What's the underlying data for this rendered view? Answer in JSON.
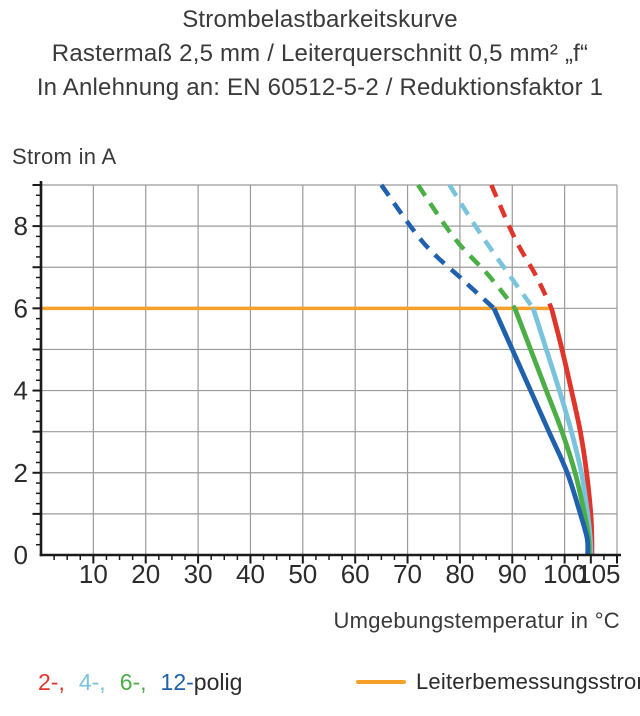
{
  "title": {
    "line1": "Strombelastbarkeitskurve",
    "line2": "Rastermaß 2,5 mm / Leiterquerschnitt 0,5 mm² „f“",
    "line3": "In Anlehnung an: EN 60512-5-2 / Reduktionsfaktor 1"
  },
  "chart_data": {
    "type": "line",
    "title": "Strombelastbarkeitskurve",
    "xlabel": "Umgebungstemperatur in °C",
    "ylabel": "Strom in A",
    "xlim": [
      0,
      110
    ],
    "ylim": [
      0,
      9
    ],
    "grid": true,
    "grid_color": "#9b9b9b",
    "axis_color": "#1a1a1a",
    "x_minor_step": 2.5,
    "y_minor_step": 0.25,
    "x_ticks": [
      {
        "v": 10,
        "label": "10",
        "dx": 0
      },
      {
        "v": 20,
        "label": "20",
        "dx": 0
      },
      {
        "v": 30,
        "label": "30",
        "dx": 0
      },
      {
        "v": 40,
        "label": "40",
        "dx": 0
      },
      {
        "v": 50,
        "label": "50",
        "dx": 0
      },
      {
        "v": 60,
        "label": "60",
        "dx": 0
      },
      {
        "v": 70,
        "label": "70",
        "dx": 0
      },
      {
        "v": 80,
        "label": "80",
        "dx": 0
      },
      {
        "v": 90,
        "label": "90",
        "dx": 0
      },
      {
        "v": 100,
        "label": "100",
        "dx": 0
      },
      {
        "v": 105,
        "label": "105",
        "dx": 8
      }
    ],
    "y_ticks": [
      {
        "v": 0,
        "label": "0"
      },
      {
        "v": 2,
        "label": "2"
      },
      {
        "v": 4,
        "label": "4"
      },
      {
        "v": 6,
        "label": "6"
      },
      {
        "v": 8,
        "label": "8"
      }
    ],
    "series": [
      {
        "name": "2-polig",
        "color": "#e0352b",
        "dashed_points": [
          [
            86,
            9
          ],
          [
            90.5,
            7.7
          ],
          [
            94.5,
            6.8
          ],
          [
            97.5,
            6
          ]
        ],
        "solid_points": [
          [
            97.5,
            6
          ],
          [
            99.5,
            5
          ],
          [
            101.3,
            4
          ],
          [
            103,
            3
          ],
          [
            104.2,
            2
          ],
          [
            105,
            1
          ],
          [
            105.2,
            0.4
          ],
          [
            105.2,
            0
          ]
        ]
      },
      {
        "name": "4-polig",
        "color": "#79c3dc",
        "dashed_points": [
          [
            78,
            9
          ],
          [
            84,
            7.8
          ],
          [
            89.5,
            6.8
          ],
          [
            94,
            6
          ]
        ],
        "solid_points": [
          [
            94,
            6
          ],
          [
            96.5,
            5
          ],
          [
            99,
            4
          ],
          [
            101.3,
            3
          ],
          [
            103.2,
            2
          ],
          [
            104.4,
            1
          ],
          [
            104.9,
            0.4
          ],
          [
            105,
            0
          ]
        ]
      },
      {
        "name": "6-polig",
        "color": "#4bae46",
        "dashed_points": [
          [
            72,
            9
          ],
          [
            79,
            7.7
          ],
          [
            85.5,
            6.8
          ],
          [
            90.5,
            6
          ]
        ],
        "solid_points": [
          [
            90.5,
            6
          ],
          [
            93.5,
            5
          ],
          [
            96.5,
            4
          ],
          [
            99.5,
            3
          ],
          [
            102,
            2
          ],
          [
            103.8,
            1
          ],
          [
            104.6,
            0.4
          ],
          [
            104.7,
            0
          ]
        ]
      },
      {
        "name": "12-polig",
        "color": "#2061ae",
        "dashed_points": [
          [
            65,
            9
          ],
          [
            73,
            7.6
          ],
          [
            80.5,
            6.7
          ],
          [
            86.5,
            6
          ]
        ],
        "solid_points": [
          [
            86.5,
            6
          ],
          [
            90,
            5
          ],
          [
            93.5,
            4
          ],
          [
            97,
            3
          ],
          [
            100.5,
            2
          ],
          [
            103,
            1
          ],
          [
            104.3,
            0.4
          ],
          [
            104.4,
            0
          ]
        ]
      }
    ],
    "reference_line": {
      "name": "Leiterbemessungsstrom",
      "value": 6,
      "x_start": 0,
      "x_end": 97.8,
      "color": "#f5a028"
    }
  },
  "legend": {
    "series_items": [
      {
        "label": "2-,",
        "color": "#e0352b"
      },
      {
        "label": "4-,",
        "color": "#79c3dc"
      },
      {
        "label": "6-,",
        "color": "#4bae46"
      },
      {
        "label": "12-",
        "color": "#2061ae"
      }
    ],
    "suffix": "polig",
    "suffix_color": "#2b2b2b",
    "reference": {
      "label": "Leiterbemessungsstrom",
      "color": "#f5a028"
    }
  }
}
